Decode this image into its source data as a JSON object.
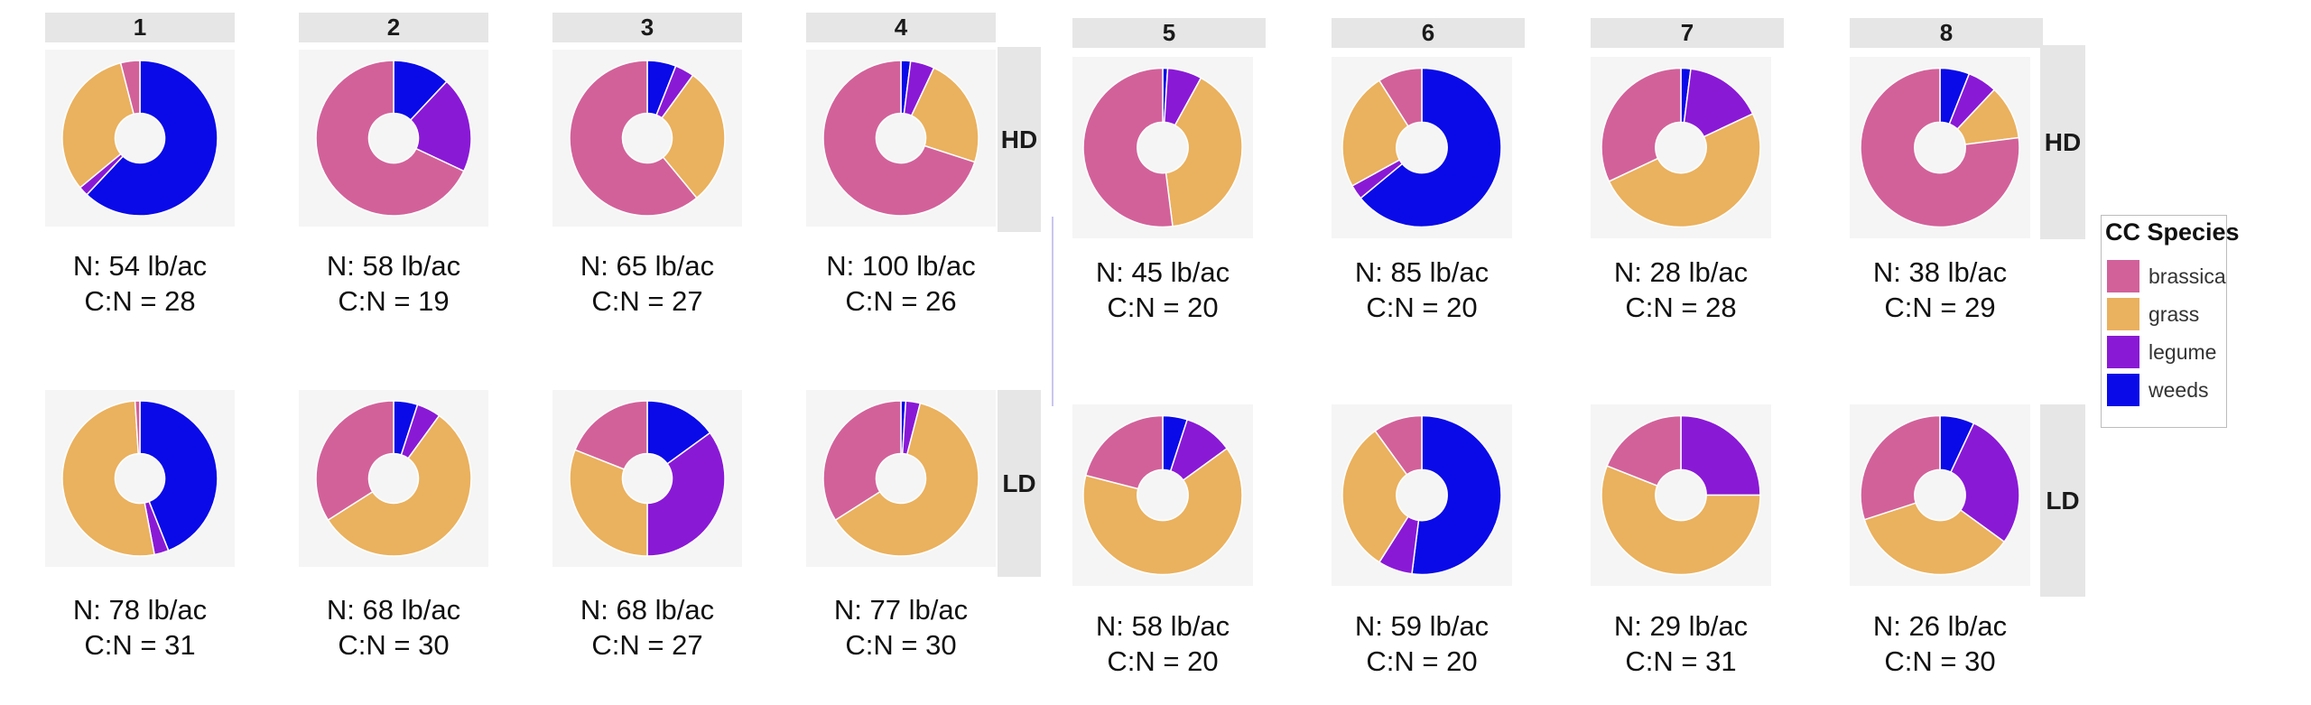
{
  "chart_data": {
    "type": "pie",
    "variant": "donut",
    "legend": {
      "title": "CC Species",
      "placement": "right",
      "items": [
        {
          "name": "brassica",
          "color": "#d2619a"
        },
        {
          "name": "grass",
          "color": "#eab15e"
        },
        {
          "name": "legume",
          "color": "#8a19d6"
        },
        {
          "name": "weeds",
          "color": "#0a0ae8"
        }
      ]
    },
    "categories": [
      "weeds",
      "legume",
      "grass",
      "brassica"
    ],
    "colors": {
      "weeds": "#0a0ae8",
      "legume": "#8a19d6",
      "grass": "#eab15e",
      "brassica": "#d2619a"
    },
    "row_facets": [
      "HD",
      "LD"
    ],
    "panels": [
      {
        "label": "1",
        "HD": {
          "values": {
            "weeds": 62,
            "legume": 2,
            "grass": 32,
            "brassica": 4
          },
          "n": "N: 54 lb/ac",
          "cn": "C:N = 28"
        },
        "LD": {
          "values": {
            "weeds": 44,
            "legume": 3,
            "grass": 52,
            "brassica": 1
          },
          "n": "N: 78 lb/ac",
          "cn": "C:N = 31"
        }
      },
      {
        "label": "2",
        "HD": {
          "values": {
            "weeds": 12,
            "legume": 20,
            "grass": 0,
            "brassica": 68
          },
          "n": "N: 58 lb/ac",
          "cn": "C:N = 19"
        },
        "LD": {
          "values": {
            "weeds": 5,
            "legume": 5,
            "grass": 56,
            "brassica": 34
          },
          "n": "N: 68 lb/ac",
          "cn": "C:N = 30"
        }
      },
      {
        "label": "3",
        "HD": {
          "values": {
            "weeds": 6,
            "legume": 4,
            "grass": 29,
            "brassica": 61
          },
          "n": "N: 65 lb/ac",
          "cn": "C:N = 27"
        },
        "LD": {
          "values": {
            "weeds": 15,
            "legume": 35,
            "grass": 31,
            "brassica": 19
          },
          "n": "N: 68 lb/ac",
          "cn": "C:N = 27"
        }
      },
      {
        "label": "4",
        "HD": {
          "values": {
            "weeds": 2,
            "legume": 5,
            "grass": 23,
            "brassica": 70
          },
          "n": "N: 100 lb/ac",
          "cn": "C:N = 26"
        },
        "LD": {
          "values": {
            "weeds": 1,
            "legume": 3,
            "grass": 62,
            "brassica": 34
          },
          "n": "N: 77 lb/ac",
          "cn": "C:N = 30"
        }
      },
      {
        "label": "5",
        "HD": {
          "values": {
            "weeds": 1,
            "legume": 7,
            "grass": 40,
            "brassica": 52
          },
          "n": "N: 45 lb/ac",
          "cn": "C:N = 20"
        },
        "LD": {
          "values": {
            "weeds": 5,
            "legume": 10,
            "grass": 64,
            "brassica": 21
          },
          "n": "N: 58 lb/ac",
          "cn": "C:N = 20"
        }
      },
      {
        "label": "6",
        "HD": {
          "values": {
            "weeds": 64,
            "legume": 3,
            "grass": 24,
            "brassica": 9
          },
          "n": "N: 85 lb/ac",
          "cn": "C:N = 20"
        },
        "LD": {
          "values": {
            "weeds": 52,
            "legume": 7,
            "grass": 31,
            "brassica": 10
          },
          "n": "N: 59 lb/ac",
          "cn": "C:N = 20"
        }
      },
      {
        "label": "7",
        "HD": {
          "values": {
            "weeds": 2,
            "legume": 16,
            "grass": 50,
            "brassica": 32
          },
          "n": "N: 28 lb/ac",
          "cn": "C:N = 28"
        },
        "LD": {
          "values": {
            "weeds": 0,
            "legume": 25,
            "grass": 56,
            "brassica": 19
          },
          "n": "N: 29 lb/ac",
          "cn": "C:N = 31"
        }
      },
      {
        "label": "8",
        "HD": {
          "values": {
            "weeds": 6,
            "legume": 6,
            "grass": 11,
            "brassica": 77
          },
          "n": "N: 38 lb/ac",
          "cn": "C:N = 29"
        },
        "LD": {
          "values": {
            "weeds": 7,
            "legume": 28,
            "grass": 35,
            "brassica": 30
          },
          "n": "N: 26 lb/ac",
          "cn": "C:N = 30"
        }
      }
    ]
  }
}
